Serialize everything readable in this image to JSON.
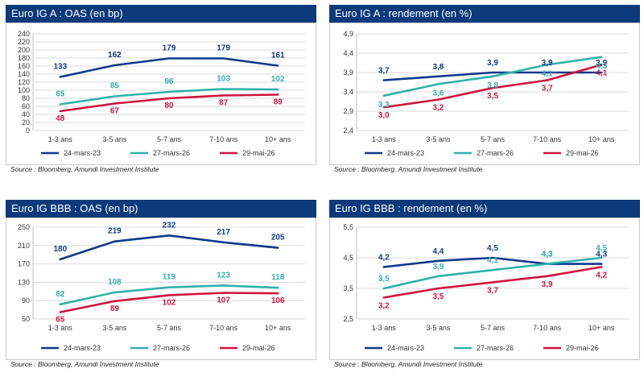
{
  "legend_names": [
    "24-mars-23",
    "27-mars-26",
    "29-mai-26"
  ],
  "colors": {
    "header": "#0d3a7a",
    "s1": "#0d3a8a",
    "s2": "#2fb1aa",
    "s3": "#d0133f"
  },
  "source": "Source : Bloomberg, Amundi Investment Institute",
  "chart_data": [
    {
      "type": "line",
      "title": "Euro IG A : OAS (en bp)",
      "categories": [
        "1-3 ans",
        "3-5 ans",
        "5-7 ans",
        "7-10 ans",
        "10+ ans"
      ],
      "ylim": [
        0,
        240
      ],
      "yticks": [
        "0",
        "20",
        "40",
        "60",
        "80",
        "100",
        "120",
        "140",
        "160",
        "180",
        "200",
        "220",
        "240"
      ],
      "grid": true,
      "legend": "bottom",
      "series": [
        {
          "name": "24-mars-23",
          "values": [
            133,
            162,
            179,
            179,
            161
          ],
          "labels": [
            "133",
            "162",
            "179",
            "179",
            "161"
          ]
        },
        {
          "name": "27-mars-26",
          "values": [
            65,
            85,
            96,
            103,
            102
          ],
          "labels": [
            "65",
            "85",
            "96",
            "103",
            "102"
          ]
        },
        {
          "name": "29-mai-26",
          "values": [
            48,
            67,
            80,
            87,
            89
          ],
          "labels": [
            "48",
            "67",
            "80",
            "87",
            "89"
          ]
        }
      ]
    },
    {
      "type": "line",
      "title": "Euro IG A : rendement (en %)",
      "categories": [
        "1-3 ans",
        "3-5 ans",
        "5-7 ans",
        "7-10 ans",
        "10+ ans"
      ],
      "ylim": [
        2.4,
        4.9
      ],
      "yticks": [
        "2,4",
        "2,9",
        "3,4",
        "3,9",
        "4,4",
        "4,9"
      ],
      "grid": true,
      "legend": "bottom",
      "series": [
        {
          "name": "24-mars-23",
          "values": [
            3.7,
            3.8,
            3.9,
            3.9,
            3.9
          ],
          "labels": [
            "3,7",
            "3,8",
            "3,9",
            "3,9",
            "3,9"
          ]
        },
        {
          "name": "27-mars-26",
          "values": [
            3.3,
            3.6,
            3.8,
            4.1,
            4.3
          ],
          "labels": [
            "3,3",
            "3,6",
            "3,8",
            "4,1",
            "4,3"
          ]
        },
        {
          "name": "29-mai-26",
          "values": [
            3.0,
            3.2,
            3.5,
            3.7,
            4.1
          ],
          "labels": [
            "3,0",
            "3,2",
            "3,5",
            "3,7",
            "4,1"
          ]
        }
      ]
    },
    {
      "type": "line",
      "title": "Euro IG BBB : OAS (en bp)",
      "categories": [
        "1-3 ans",
        "3-5 ans",
        "5-7 ans",
        "7-10 ans",
        "10+ ans"
      ],
      "ylim": [
        50,
        250
      ],
      "yticks": [
        "50",
        "90",
        "130",
        "170",
        "210",
        "250"
      ],
      "grid": true,
      "legend": "bottom",
      "series": [
        {
          "name": "24-mars-23",
          "values": [
            180,
            219,
            232,
            217,
            205
          ],
          "labels": [
            "180",
            "219",
            "232",
            "217",
            "205"
          ]
        },
        {
          "name": "27-mars-26",
          "values": [
            82,
            108,
            119,
            123,
            118
          ],
          "labels": [
            "82",
            "108",
            "119",
            "123",
            "118"
          ]
        },
        {
          "name": "29-mai-26",
          "values": [
            65,
            89,
            102,
            107,
            106
          ],
          "labels": [
            "65",
            "89",
            "102",
            "107",
            "106"
          ]
        }
      ]
    },
    {
      "type": "line",
      "title": "Euro IG BBB : rendement (en %)",
      "categories": [
        "1-3 ans",
        "3-5 ans",
        "5-7 ans",
        "7-10 ans",
        "10+ ans"
      ],
      "ylim": [
        2.5,
        5.5
      ],
      "yticks": [
        "2,5",
        "3,5",
        "4,5",
        "5,5"
      ],
      "grid": true,
      "legend": "bottom",
      "series": [
        {
          "name": "24-mars-23",
          "values": [
            4.2,
            4.4,
            4.5,
            4.3,
            4.3
          ],
          "labels": [
            "4,2",
            "4,4",
            "4,5",
            "4,3",
            "4,3"
          ]
        },
        {
          "name": "27-mars-26",
          "values": [
            3.5,
            3.9,
            4.1,
            4.3,
            4.5
          ],
          "labels": [
            "3,5",
            "3,9",
            "4,1",
            "4,3",
            "4,5"
          ]
        },
        {
          "name": "29-mai-26",
          "values": [
            3.2,
            3.5,
            3.7,
            3.9,
            4.2
          ],
          "labels": [
            "3,2",
            "3,5",
            "3,7",
            "3,9",
            "4,2"
          ]
        }
      ]
    }
  ]
}
